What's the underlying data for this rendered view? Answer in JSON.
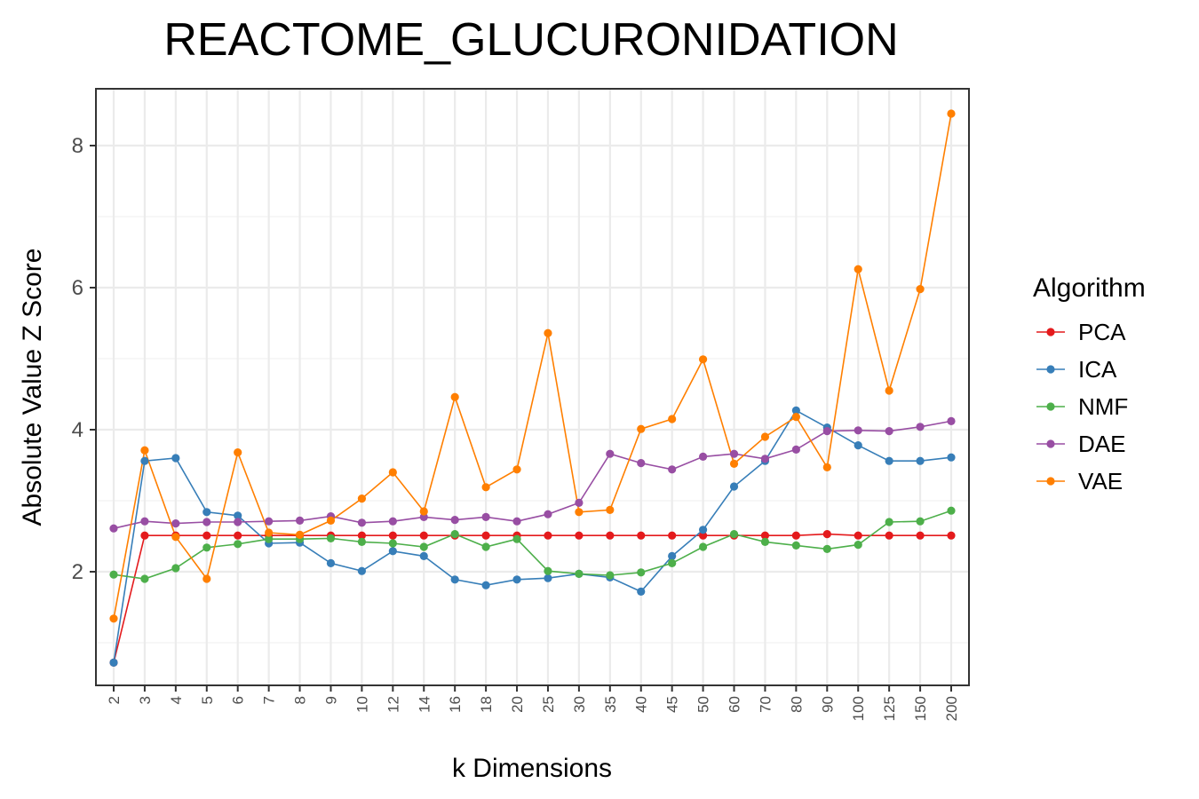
{
  "chart_data": {
    "type": "line",
    "title": "REACTOME_GLUCURONIDATION",
    "xlabel": "k Dimensions",
    "ylabel": "Absolute Value Z Score",
    "categories": [
      "2",
      "3",
      "4",
      "5",
      "6",
      "7",
      "8",
      "9",
      "10",
      "12",
      "14",
      "16",
      "18",
      "20",
      "25",
      "30",
      "35",
      "40",
      "45",
      "50",
      "60",
      "70",
      "80",
      "90",
      "100",
      "125",
      "150",
      "200"
    ],
    "yticks": [
      2,
      4,
      6,
      8
    ],
    "ylim": [
      0.4,
      8.8
    ],
    "grid": true,
    "legend": {
      "title": "Algorithm",
      "placement": "right"
    },
    "series": [
      {
        "name": "PCA",
        "color": "#e41a1c",
        "values": [
          0.72,
          2.51,
          2.51,
          2.51,
          2.51,
          2.51,
          2.51,
          2.51,
          2.51,
          2.51,
          2.51,
          2.51,
          2.51,
          2.51,
          2.51,
          2.51,
          2.51,
          2.51,
          2.51,
          2.51,
          2.51,
          2.51,
          2.51,
          2.53,
          2.51,
          2.51,
          2.51,
          2.51
        ]
      },
      {
        "name": "ICA",
        "color": "#377eb8",
        "values": [
          0.72,
          3.56,
          3.6,
          2.84,
          2.79,
          2.4,
          2.41,
          2.12,
          2.01,
          2.29,
          2.22,
          1.89,
          1.81,
          1.89,
          1.91,
          1.97,
          1.92,
          1.72,
          2.22,
          2.59,
          3.2,
          3.56,
          4.27,
          4.03,
          3.78,
          3.56,
          3.56,
          3.61
        ]
      },
      {
        "name": "NMF",
        "color": "#4daf4a",
        "values": [
          1.96,
          1.9,
          2.05,
          2.34,
          2.39,
          2.46,
          2.46,
          2.47,
          2.42,
          2.4,
          2.35,
          2.53,
          2.35,
          2.46,
          2.01,
          1.97,
          1.95,
          1.99,
          2.12,
          2.35,
          2.53,
          2.42,
          2.37,
          2.32,
          2.38,
          2.7,
          2.71,
          2.86
        ]
      },
      {
        "name": "DAE",
        "color": "#984ea3",
        "values": [
          2.61,
          2.71,
          2.68,
          2.7,
          2.7,
          2.71,
          2.72,
          2.78,
          2.69,
          2.71,
          2.77,
          2.73,
          2.77,
          2.71,
          2.81,
          2.97,
          3.66,
          3.53,
          3.44,
          3.62,
          3.66,
          3.59,
          3.72,
          3.98,
          3.99,
          3.98,
          4.04,
          4.12
        ]
      },
      {
        "name": "VAE",
        "color": "#ff7f00",
        "values": [
          1.34,
          3.71,
          2.49,
          1.9,
          3.68,
          2.55,
          2.52,
          2.72,
          3.03,
          3.4,
          2.85,
          4.46,
          3.19,
          3.44,
          5.36,
          2.84,
          2.87,
          4.01,
          4.15,
          4.99,
          3.52,
          3.9,
          4.18,
          3.47,
          6.26,
          4.55,
          5.98,
          8.45
        ]
      }
    ]
  }
}
